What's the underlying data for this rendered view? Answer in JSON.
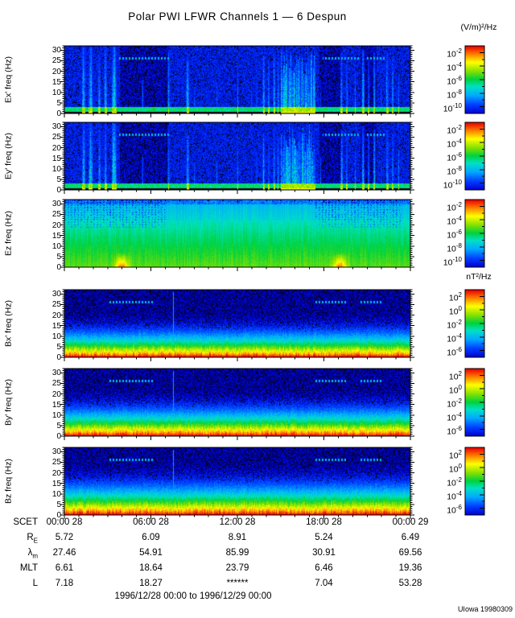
{
  "chart_data": {
    "type": "heatmap",
    "title": "Polar PWI LFWR Channels 1 — 6 Despun",
    "time_range_label": "1996/12/28 00:00 to 1996/12/29 00:00",
    "credit": "UIowa 19980309",
    "units": {
      "electric": "(V/m)²/Hz",
      "magnetic": "nT²/Hz"
    },
    "x_axis": {
      "prefix": "SCET",
      "tick_labels": [
        "00:00 28",
        "06:00 28",
        "12:00 28",
        "18:00 28",
        "00:00 29"
      ],
      "minor_tick_interval_hours": 1,
      "major_tick_interval_hours": 6
    },
    "y_axis": {
      "tick_labels": [
        30,
        25,
        20,
        15,
        10,
        5,
        0
      ],
      "range": [
        0,
        32
      ],
      "unit": "Hz"
    },
    "colorbars": {
      "electric": {
        "unit": "(V/m)²/Hz",
        "base": "10",
        "tick_exponents": [
          "-2",
          "-4",
          "-6",
          "-8",
          "-10"
        ]
      },
      "magnetic": {
        "unit": "nT²/Hz",
        "base": "10",
        "tick_exponents": [
          "2",
          "0",
          "-2",
          "-4",
          "-6"
        ]
      }
    },
    "panels": [
      {
        "id": "ex",
        "ylabel": "Ex' freq (Hz)",
        "colorbar": "electric",
        "render": {
          "mode": "bursts",
          "seed": 11
        }
      },
      {
        "id": "ey",
        "ylabel": "Ey' freq (Hz)",
        "colorbar": "electric",
        "render": {
          "mode": "bursts",
          "seed": 47
        }
      },
      {
        "id": "ez",
        "ylabel": "Ez freq (Hz)",
        "colorbar": "electric",
        "render": {
          "mode": "smooth",
          "seed": 7,
          "spots": [
            0.165,
            0.795
          ]
        }
      },
      {
        "id": "bx",
        "ylabel": "Bx' freq (Hz)",
        "colorbar": "magnetic",
        "render": {
          "mode": "vgrad",
          "seed": 21,
          "a": 0.32
        }
      },
      {
        "id": "by",
        "ylabel": "By' freq (Hz)",
        "colorbar": "magnetic",
        "render": {
          "mode": "vgrad",
          "seed": 55,
          "a": 0.28
        }
      },
      {
        "id": "bz",
        "ylabel": "Bz freq (Hz)",
        "colorbar": "magnetic",
        "render": {
          "mode": "vgrad",
          "seed": 83,
          "a": 0.2
        }
      }
    ],
    "render_shared": {
      "bursts_shared": {
        "dash": [
          [
            0.155,
            0.3
          ],
          [
            0.745,
            0.85
          ],
          [
            0.87,
            0.93
          ]
        ],
        "dark": [
          [
            0.16,
            0.3
          ],
          [
            0.735,
            0.8
          ],
          [
            0.855,
            0.9
          ]
        ],
        "active": [
          0.625,
          0.725
        ],
        "bursts": [
          [
            0.055,
            0.014,
            1,
            0.5
          ],
          [
            0.075,
            0.016,
            1,
            0.55
          ],
          [
            0.1,
            0.009,
            0.9,
            0.45
          ],
          [
            0.118,
            0.01,
            1,
            0.5
          ],
          [
            0.143,
            0.018,
            1,
            0.6
          ],
          [
            0.225,
            0.006,
            0.5,
            0.3
          ],
          [
            0.3,
            0.008,
            0.95,
            0.4
          ],
          [
            0.355,
            0.013,
            0.8,
            0.45
          ],
          [
            0.375,
            0.006,
            0.4,
            0.3
          ],
          [
            0.44,
            0.006,
            0.45,
            0.3
          ],
          [
            0.5,
            0.005,
            0.9,
            0.35
          ],
          [
            0.54,
            0.005,
            0.4,
            0.28
          ],
          [
            0.555,
            0.006,
            0.5,
            0.3
          ],
          [
            0.575,
            0.009,
            0.85,
            0.45
          ],
          [
            0.59,
            0.007,
            0.8,
            0.4
          ],
          [
            0.605,
            0.008,
            0.9,
            0.45
          ],
          [
            0.617,
            0.006,
            0.8,
            0.4
          ],
          [
            0.74,
            0.004,
            0.5,
            0.3
          ],
          [
            0.8,
            0.009,
            0.9,
            0.45
          ],
          [
            0.815,
            0.006,
            0.8,
            0.38
          ],
          [
            0.84,
            0.005,
            0.6,
            0.32
          ],
          [
            0.862,
            0.01,
            0.95,
            0.5
          ],
          [
            0.878,
            0.006,
            0.8,
            0.38
          ],
          [
            0.895,
            0.008,
            0.9,
            0.45
          ],
          [
            0.915,
            0.005,
            0.5,
            0.3
          ],
          [
            0.932,
            0.01,
            0.9,
            0.48
          ],
          [
            0.948,
            0.008,
            0.85,
            0.42
          ],
          [
            0.965,
            0.006,
            0.6,
            0.35
          ]
        ]
      },
      "vgrad_shared": {
        "dash": [
          [
            0.13,
            0.26
          ],
          [
            0.72,
            0.815
          ],
          [
            0.855,
            0.92
          ]
        ],
        "vline": 0.314
      }
    },
    "ephemeris": {
      "rows": [
        {
          "label": "R",
          "sub": "E",
          "values": [
            "5.72",
            "6.09",
            "8.91",
            "5.24",
            "6.49"
          ]
        },
        {
          "label": "λ",
          "sub": "m",
          "values": [
            "27.46",
            "54.91",
            "85.99",
            "30.91",
            "69.56"
          ]
        },
        {
          "label": "MLT",
          "sub": "",
          "values": [
            "6.61",
            "18.64",
            "23.79",
            "6.46",
            "19.36"
          ]
        },
        {
          "label": "L",
          "sub": "",
          "values": [
            "7.18",
            "18.27",
            "******",
            "7.04",
            "53.28"
          ]
        }
      ]
    }
  }
}
